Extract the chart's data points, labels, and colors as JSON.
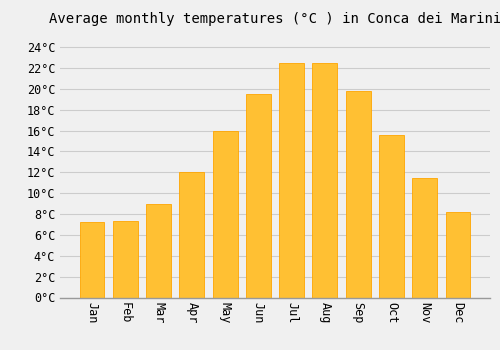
{
  "title": "Average monthly temperatures (°C ) in Conca dei Marini",
  "months": [
    "Jan",
    "Feb",
    "Mar",
    "Apr",
    "May",
    "Jun",
    "Jul",
    "Aug",
    "Sep",
    "Oct",
    "Nov",
    "Dec"
  ],
  "values": [
    7.2,
    7.3,
    9.0,
    12.0,
    16.0,
    19.5,
    22.5,
    22.5,
    19.8,
    15.6,
    11.5,
    8.2
  ],
  "bar_color": "#FFC033",
  "bar_edge_color": "#FFA500",
  "background_color": "#F0F0F0",
  "grid_color": "#CCCCCC",
  "yticks": [
    0,
    2,
    4,
    6,
    8,
    10,
    12,
    14,
    16,
    18,
    20,
    22,
    24
  ],
  "ylim": [
    0,
    25.5
  ],
  "title_fontsize": 10,
  "tick_fontsize": 8.5,
  "font_family": "monospace",
  "bar_width": 0.75
}
